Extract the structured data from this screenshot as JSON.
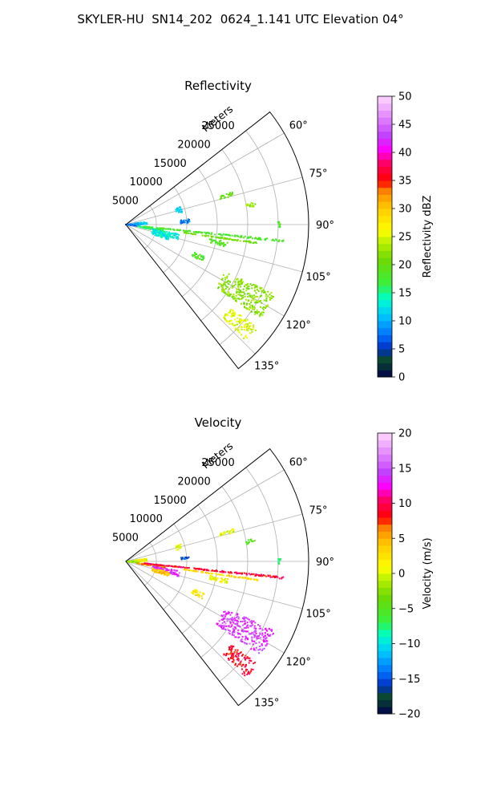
{
  "figure": {
    "title": "SKYLER-HU  SN14_202  0624_1.141 UTC Elevation 04°"
  },
  "chart_data": [
    {
      "type": "polar-sector-scatter",
      "title": "Reflectivity",
      "radial_label": "Meters",
      "theta_ticks": [
        "60°",
        "75°",
        "90°",
        "105°",
        "120°",
        "135°"
      ],
      "theta_values_deg": [
        60,
        75,
        90,
        105,
        120,
        135
      ],
      "theta_range_deg": [
        52,
        142
      ],
      "radial_ticks": [
        "5000",
        "10000",
        "15000",
        "20000",
        "25000"
      ],
      "radial_values": [
        5000,
        10000,
        15000,
        20000,
        25000
      ],
      "radial_range": [
        0,
        30000
      ],
      "colorbar": {
        "label": "Reflectivity dBZ",
        "range": [
          0,
          50
        ],
        "ticks": [
          "0",
          "5",
          "10",
          "15",
          "20",
          "25",
          "30",
          "35",
          "40",
          "45",
          "50"
        ],
        "tick_values": [
          0,
          5,
          10,
          15,
          20,
          25,
          30,
          35,
          40,
          45,
          50
        ]
      },
      "clusters": [
        {
          "theta": 92,
          "r": [
            0,
            2200
          ],
          "value": 7,
          "spread": 6
        },
        {
          "theta": 86,
          "r": [
            1500,
            3500
          ],
          "value": 11,
          "spread": 4
        },
        {
          "theta": 75,
          "r": [
            8500,
            9500
          ],
          "value": 11,
          "spread": 3
        },
        {
          "theta": 87,
          "r": [
            9000,
            10500
          ],
          "value": 8,
          "spread": 2
        },
        {
          "theta": 99,
          "r": [
            2000,
            6500
          ],
          "value": 16,
          "spread": 2
        },
        {
          "theta": 103,
          "r": [
            4500,
            9000
          ],
          "value": 13,
          "spread": 3
        },
        {
          "theta": 107,
          "r": [
            4500,
            7500
          ],
          "value": 13,
          "spread": 3
        },
        {
          "theta": 96,
          "r": [
            3000,
            26000
          ],
          "value": 18,
          "spread": 0.4
        },
        {
          "theta": 98,
          "r": [
            9500,
            22000
          ],
          "value": 21,
          "spread": 0.3
        },
        {
          "theta": 101,
          "r": [
            14000,
            17000
          ],
          "value": 19,
          "spread": 1.5
        },
        {
          "theta": 74,
          "r": [
            16000,
            18500
          ],
          "value": 20,
          "spread": 1
        },
        {
          "theta": 81,
          "r": [
            20000,
            21500
          ],
          "value": 22,
          "spread": 1
        },
        {
          "theta": 90,
          "r": [
            25000,
            25400
          ],
          "value": 19,
          "spread": 1
        },
        {
          "theta": 120,
          "r": [
            18000,
            27000
          ],
          "value": 22,
          "spread": 5
        },
        {
          "theta": 131,
          "r": [
            22000,
            27500
          ],
          "value": 25,
          "spread": 3
        },
        {
          "theta": 114,
          "r": [
            12000,
            14000
          ],
          "value": 18,
          "spread": 2
        }
      ]
    },
    {
      "type": "polar-sector-scatter",
      "title": "Velocity",
      "radial_label": "Meters",
      "theta_ticks": [
        "60°",
        "75°",
        "90°",
        "105°",
        "120°",
        "135°"
      ],
      "theta_values_deg": [
        60,
        75,
        90,
        105,
        120,
        135
      ],
      "theta_range_deg": [
        52,
        142
      ],
      "radial_ticks": [
        "5000",
        "10000",
        "15000",
        "20000",
        "25000"
      ],
      "radial_values": [
        5000,
        10000,
        15000,
        20000,
        25000
      ],
      "radial_range": [
        0,
        30000
      ],
      "colorbar": {
        "label": "Velocity (m/s)",
        "range": [
          -20,
          20
        ],
        "ticks": [
          "−20",
          "−15",
          "−10",
          "−5",
          "0",
          "5",
          "10",
          "15",
          "20"
        ],
        "tick_values": [
          -20,
          -15,
          -10,
          -5,
          0,
          5,
          10,
          15,
          20
        ]
      },
      "clusters": [
        {
          "theta": 92,
          "r": [
            0,
            2200
          ],
          "value": -2,
          "spread": 6
        },
        {
          "theta": 86,
          "r": [
            1500,
            3500
          ],
          "value": 1,
          "spread": 4
        },
        {
          "theta": 75,
          "r": [
            8500,
            9500
          ],
          "value": 1,
          "spread": 3
        },
        {
          "theta": 87,
          "r": [
            9000,
            10500
          ],
          "value": -15,
          "spread": 1
        },
        {
          "theta": 99,
          "r": [
            2000,
            6500
          ],
          "value": 6,
          "spread": 2
        },
        {
          "theta": 103,
          "r": [
            4500,
            9000
          ],
          "value": 14,
          "spread": 3
        },
        {
          "theta": 107,
          "r": [
            4500,
            7500
          ],
          "value": 4,
          "spread": 3
        },
        {
          "theta": 96,
          "r": [
            3000,
            26000
          ],
          "value": 9,
          "spread": 0.4
        },
        {
          "theta": 98,
          "r": [
            9500,
            22000
          ],
          "value": 3,
          "spread": 0.3
        },
        {
          "theta": 101,
          "r": [
            14000,
            17000
          ],
          "value": 1,
          "spread": 1.5
        },
        {
          "theta": 74,
          "r": [
            16000,
            18500
          ],
          "value": 0,
          "spread": 1
        },
        {
          "theta": 81,
          "r": [
            20000,
            21500
          ],
          "value": -5,
          "spread": 1
        },
        {
          "theta": 90,
          "r": [
            25000,
            25400
          ],
          "value": -7,
          "spread": 1
        },
        {
          "theta": 120,
          "r": [
            18000,
            27000
          ],
          "value": 14,
          "spread": 5
        },
        {
          "theta": 131,
          "r": [
            22000,
            27500
          ],
          "value": 9,
          "spread": 3
        },
        {
          "theta": 114,
          "r": [
            12000,
            14000
          ],
          "value": 2,
          "spread": 2
        }
      ]
    }
  ]
}
